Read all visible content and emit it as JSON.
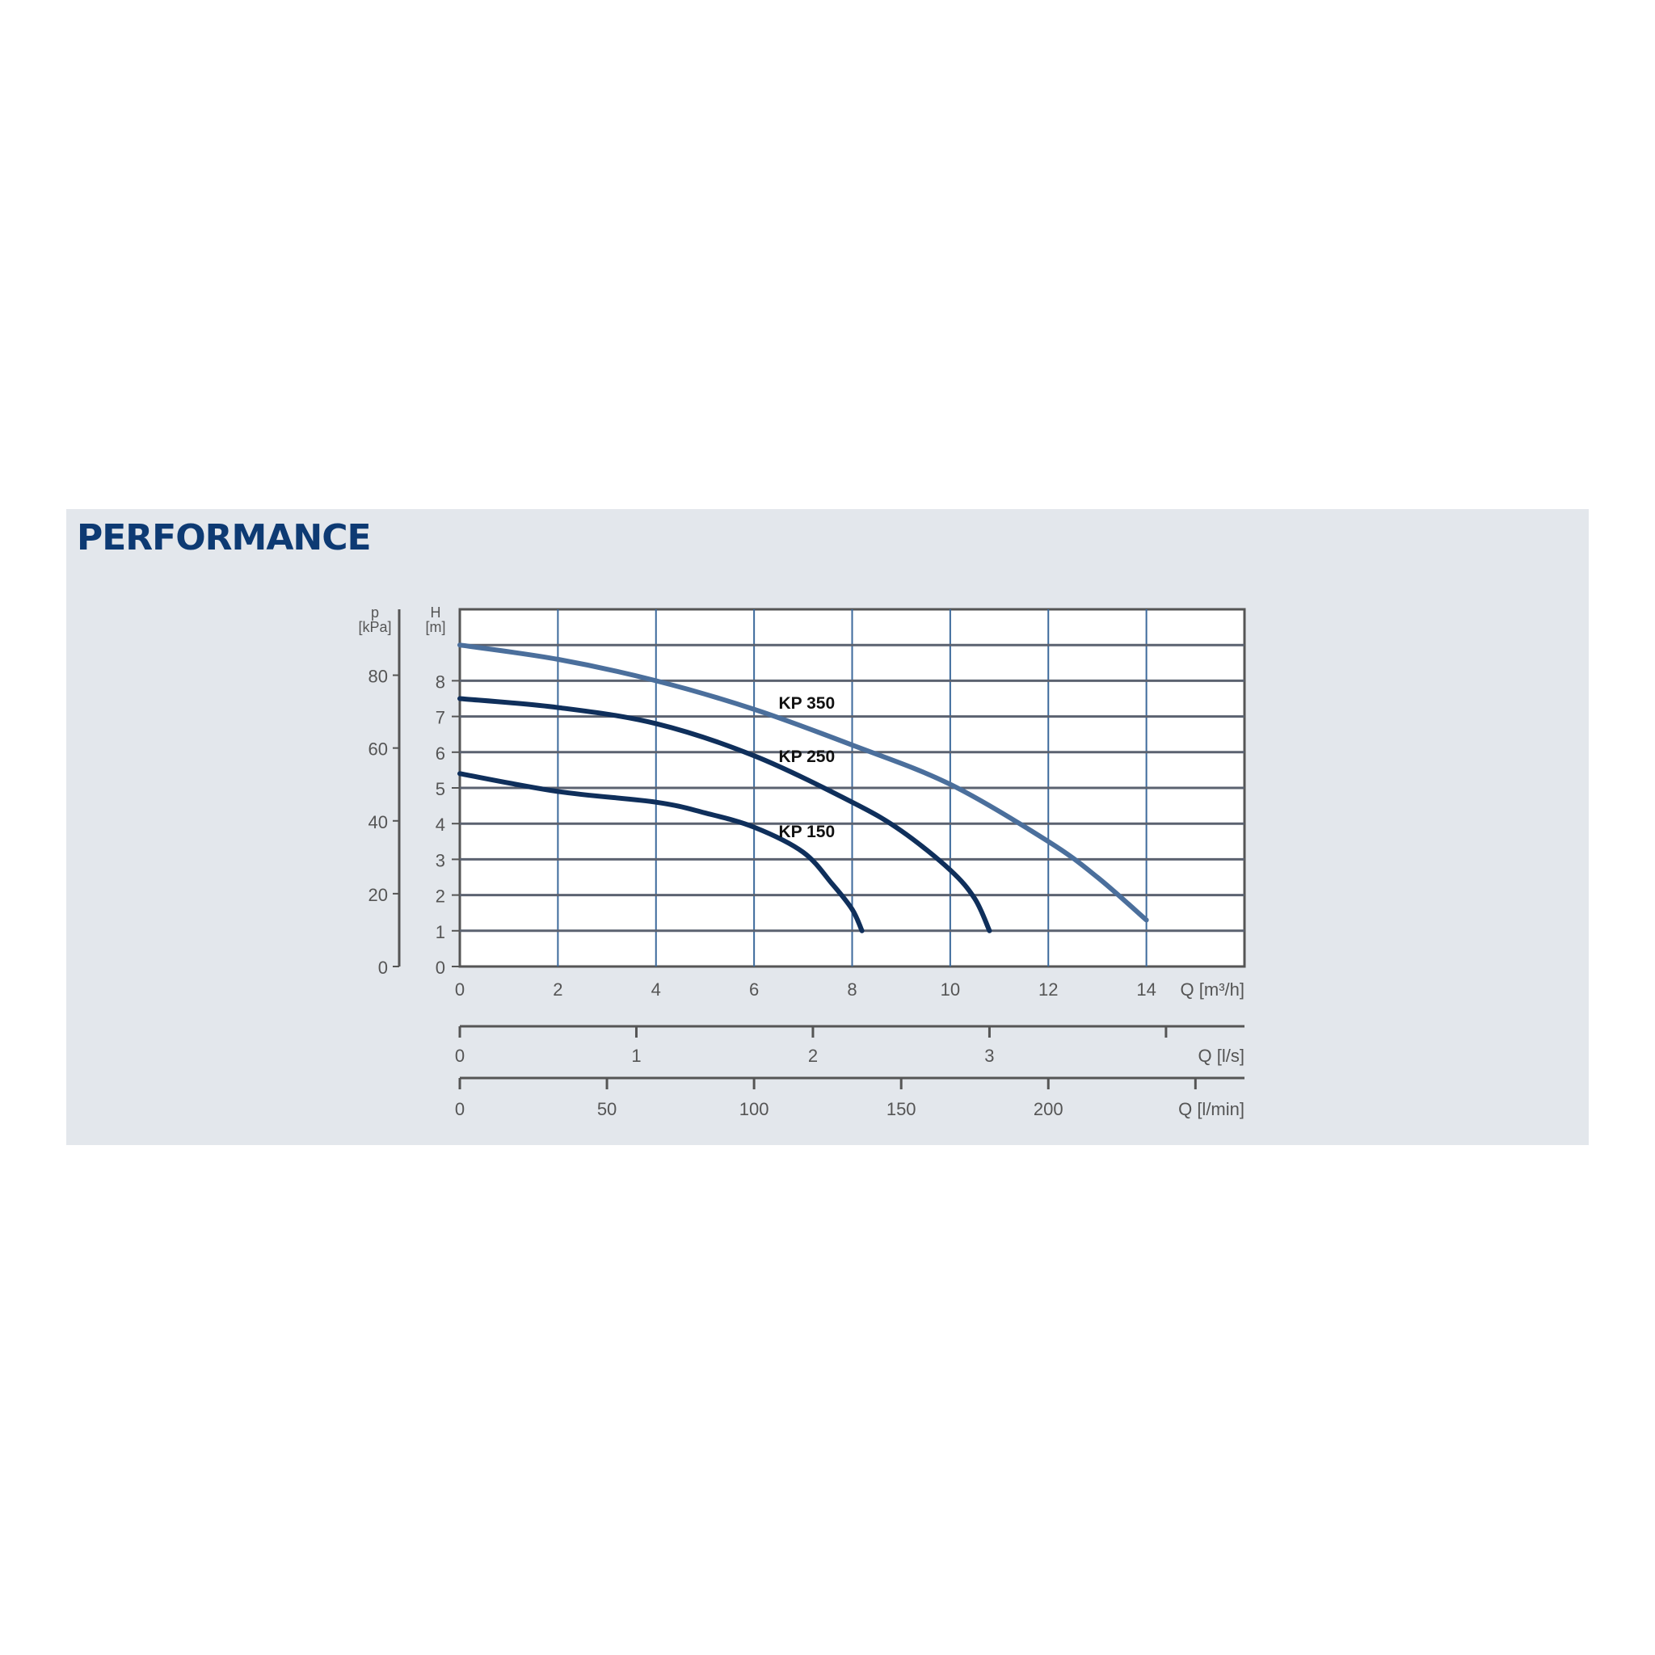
{
  "title": "PERFORMANCE",
  "chart_data": {
    "type": "line",
    "title": "PERFORMANCE",
    "xlabel": "Q [m³/h]",
    "ylabel": "H [m]",
    "ylabel_secondary": "p [kPa]",
    "xlim": [
      0,
      16
    ],
    "ylim": [
      0,
      10
    ],
    "x_ticks": [
      0,
      2,
      4,
      6,
      8,
      10,
      12,
      14
    ],
    "y_ticks": [
      0,
      1,
      2,
      3,
      4,
      5,
      6,
      7,
      8
    ],
    "y_secondary_ticks": [
      0,
      20,
      40,
      60,
      80
    ],
    "grid": true,
    "extra_axes": [
      {
        "label": "Q [l/s]",
        "ticks": [
          0,
          1,
          2,
          3,
          4
        ],
        "tick_labels": [
          "0",
          "1",
          "2",
          "3",
          ""
        ],
        "factor_to_m3h": 3.6
      },
      {
        "label": "Q [l/min]",
        "ticks": [
          0,
          50,
          100,
          150,
          200,
          250
        ],
        "tick_labels": [
          "0",
          "50",
          "100",
          "150",
          "200",
          ""
        ],
        "factor_to_m3h": 0.06
      }
    ],
    "series": [
      {
        "name": "KP 350",
        "color": "#4b6f9c",
        "x": [
          0,
          2,
          4,
          6,
          8,
          10,
          12,
          13,
          14
        ],
        "y": [
          9,
          8.6,
          8,
          7.2,
          6.2,
          5.1,
          3.5,
          2.5,
          1.3
        ]
      },
      {
        "name": "KP 250",
        "color": "#0f2f5b",
        "x": [
          0,
          2,
          4,
          6,
          8,
          9,
          10,
          10.5,
          10.8
        ],
        "y": [
          7.5,
          7.25,
          6.8,
          5.9,
          4.6,
          3.8,
          2.7,
          1.9,
          1
        ]
      },
      {
        "name": "KP 150",
        "color": "#0f2f5b",
        "x": [
          0,
          2,
          4,
          5,
          6,
          7,
          7.6,
          8,
          8.2
        ],
        "y": [
          5.4,
          4.9,
          4.6,
          4.3,
          3.9,
          3.2,
          2.3,
          1.6,
          1
        ]
      }
    ],
    "label_positions_note": ""
  }
}
